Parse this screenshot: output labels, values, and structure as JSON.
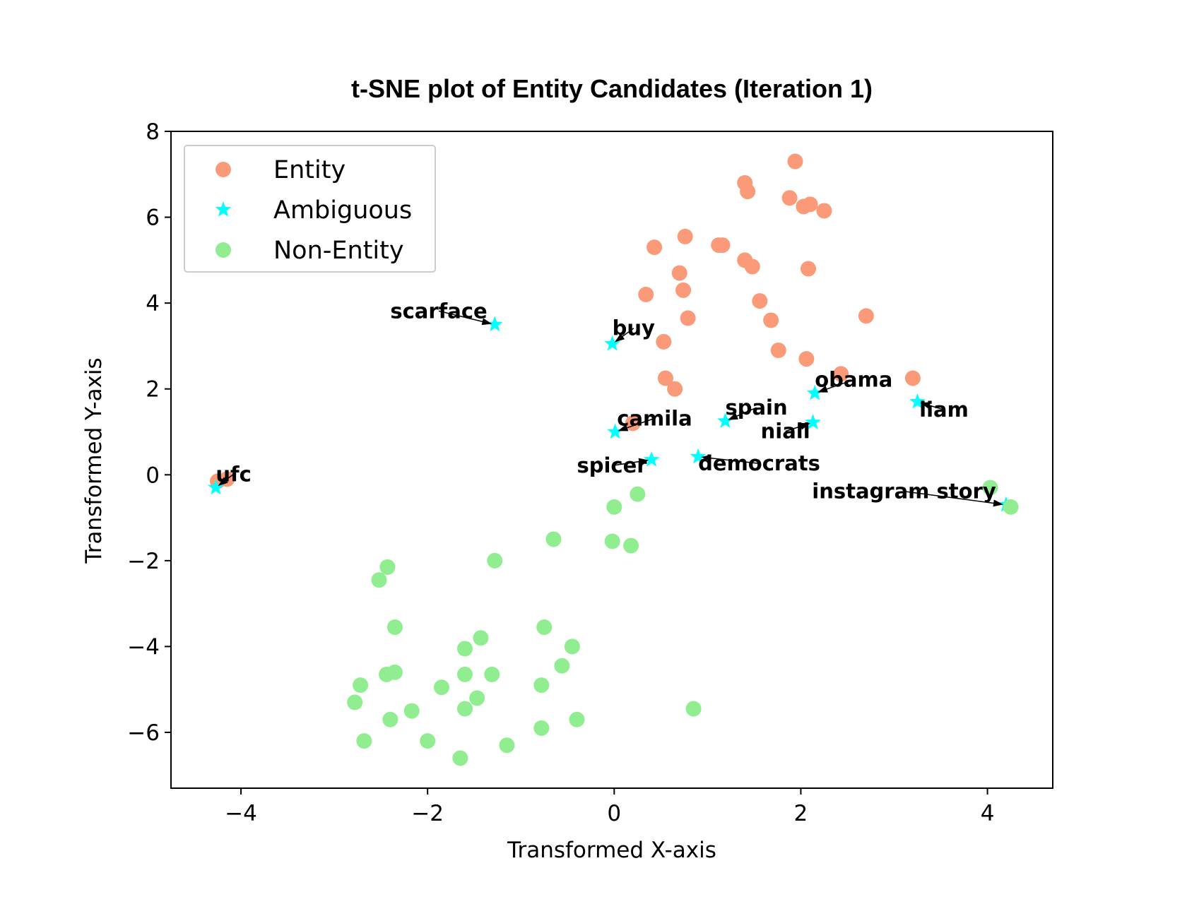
{
  "chart_data": {
    "type": "scatter",
    "title": "t-SNE plot of Entity Candidates (Iteration 1)",
    "xlabel": "Transformed X-axis",
    "ylabel": "Transformed Y-axis",
    "xlim": [
      -4.75,
      4.7
    ],
    "ylim": [
      -7.3,
      8.0
    ],
    "xticks": [
      -4,
      -2,
      0,
      2,
      4
    ],
    "xtick_labels": [
      "−4",
      "−2",
      "0",
      "2",
      "4"
    ],
    "yticks": [
      -6,
      -4,
      -2,
      0,
      2,
      4,
      6,
      8
    ],
    "ytick_labels": [
      "−6",
      "−4",
      "−2",
      "0",
      "2",
      "4",
      "6",
      "8"
    ],
    "grid": false,
    "legend_position": "upper-left",
    "series": [
      {
        "name": "Entity",
        "marker": "circle",
        "color": "#FA9A78",
        "points": [
          [
            1.94,
            7.3
          ],
          [
            1.4,
            6.8
          ],
          [
            1.43,
            6.6
          ],
          [
            1.88,
            6.45
          ],
          [
            2.03,
            6.25
          ],
          [
            2.1,
            6.3
          ],
          [
            2.25,
            6.15
          ],
          [
            0.76,
            5.55
          ],
          [
            0.43,
            5.3
          ],
          [
            1.12,
            5.35
          ],
          [
            1.16,
            5.35
          ],
          [
            1.4,
            5.0
          ],
          [
            1.48,
            4.85
          ],
          [
            2.08,
            4.8
          ],
          [
            0.7,
            4.7
          ],
          [
            0.74,
            4.3
          ],
          [
            0.34,
            4.2
          ],
          [
            1.56,
            4.05
          ],
          [
            2.7,
            3.7
          ],
          [
            0.79,
            3.65
          ],
          [
            1.68,
            3.6
          ],
          [
            0.53,
            3.1
          ],
          [
            1.76,
            2.9
          ],
          [
            2.06,
            2.7
          ],
          [
            2.43,
            2.35
          ],
          [
            3.2,
            2.25
          ],
          [
            0.55,
            2.25
          ],
          [
            0.65,
            2.0
          ],
          [
            0.2,
            1.2
          ],
          [
            -4.25,
            -0.15
          ],
          [
            -4.15,
            -0.1
          ]
        ]
      },
      {
        "name": "Ambiguous",
        "marker": "star",
        "color": "#00FFFF",
        "points": [
          [
            -1.28,
            3.5
          ],
          [
            -0.02,
            3.05
          ],
          [
            2.15,
            1.9
          ],
          [
            3.25,
            1.7
          ],
          [
            1.19,
            1.25
          ],
          [
            2.13,
            1.22
          ],
          [
            0.01,
            1.0
          ],
          [
            0.4,
            0.35
          ],
          [
            0.9,
            0.42
          ],
          [
            4.2,
            -0.7
          ],
          [
            -4.27,
            -0.3
          ]
        ]
      },
      {
        "name": "Non-Entity",
        "marker": "circle",
        "color": "#90EE90",
        "points": [
          [
            4.03,
            -0.3
          ],
          [
            4.25,
            -0.75
          ],
          [
            0.25,
            -0.45
          ],
          [
            0.0,
            -0.75
          ],
          [
            -0.65,
            -1.5
          ],
          [
            -0.02,
            -1.55
          ],
          [
            0.18,
            -1.65
          ],
          [
            -1.28,
            -2.0
          ],
          [
            -2.43,
            -2.15
          ],
          [
            -2.52,
            -2.45
          ],
          [
            -2.35,
            -3.55
          ],
          [
            -0.75,
            -3.55
          ],
          [
            -1.43,
            -3.8
          ],
          [
            -1.6,
            -4.05
          ],
          [
            -0.45,
            -4.0
          ],
          [
            -0.56,
            -4.45
          ],
          [
            -2.44,
            -4.65
          ],
          [
            -2.35,
            -4.6
          ],
          [
            -1.6,
            -4.65
          ],
          [
            -1.31,
            -4.65
          ],
          [
            -2.72,
            -4.9
          ],
          [
            -1.85,
            -4.95
          ],
          [
            -0.78,
            -4.9
          ],
          [
            -2.78,
            -5.3
          ],
          [
            -1.47,
            -5.2
          ],
          [
            -2.17,
            -5.5
          ],
          [
            -1.6,
            -5.45
          ],
          [
            -2.4,
            -5.7
          ],
          [
            0.85,
            -5.45
          ],
          [
            -0.4,
            -5.7
          ],
          [
            -0.78,
            -5.9
          ],
          [
            -2.68,
            -6.2
          ],
          [
            -2.0,
            -6.2
          ],
          [
            -1.15,
            -6.3
          ],
          [
            -1.65,
            -6.6
          ]
        ]
      }
    ],
    "annotations": [
      {
        "text": "scarface",
        "point": [
          -1.28,
          3.5
        ],
        "text_pos": [
          -2.4,
          3.65
        ],
        "anchor": "start"
      },
      {
        "text": "buy",
        "point": [
          -0.02,
          3.05
        ],
        "text_pos": [
          -0.02,
          3.25
        ],
        "anchor": "start"
      },
      {
        "text": "obama",
        "point": [
          2.15,
          1.9
        ],
        "text_pos": [
          2.15,
          2.05
        ],
        "anchor": "start"
      },
      {
        "text": "liam",
        "point": [
          3.25,
          1.7
        ],
        "text_pos": [
          3.27,
          1.35
        ],
        "anchor": "start"
      },
      {
        "text": "spain",
        "point": [
          1.19,
          1.25
        ],
        "text_pos": [
          1.19,
          1.4
        ],
        "anchor": "start"
      },
      {
        "text": "niall",
        "point": [
          2.13,
          1.22
        ],
        "text_pos": [
          1.57,
          0.85
        ],
        "anchor": "start"
      },
      {
        "text": "camila",
        "point": [
          0.01,
          1.0
        ],
        "text_pos": [
          0.03,
          1.15
        ],
        "anchor": "start"
      },
      {
        "text": "spicer",
        "point": [
          0.4,
          0.35
        ],
        "text_pos": [
          -0.4,
          0.05
        ],
        "anchor": "start"
      },
      {
        "text": "democrats",
        "point": [
          0.9,
          0.42
        ],
        "text_pos": [
          0.9,
          0.1
        ],
        "anchor": "start"
      },
      {
        "text": "instagram story",
        "point": [
          4.2,
          -0.7
        ],
        "text_pos": [
          2.12,
          -0.55
        ],
        "anchor": "start"
      },
      {
        "text": "ufc",
        "point": [
          -4.27,
          -0.3
        ],
        "text_pos": [
          -4.27,
          -0.15
        ],
        "anchor": "start"
      }
    ]
  }
}
